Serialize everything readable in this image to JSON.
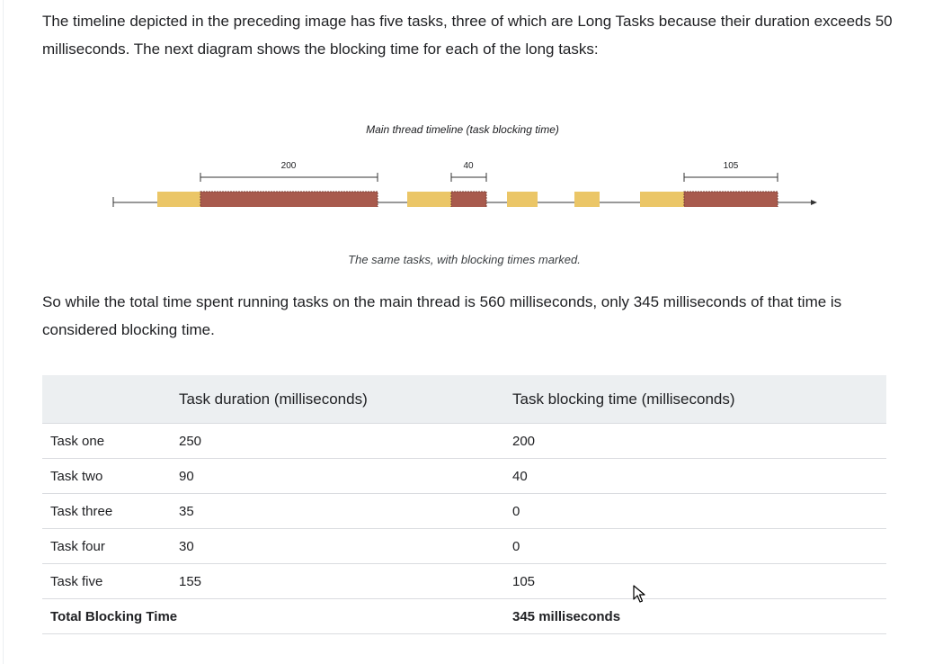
{
  "intro_paragraph": "The timeline depicted in the preceding image has five tasks, three of which are Long Tasks because their duration exceeds 50 milliseconds. The next diagram shows the blocking time for each of the long tasks:",
  "diagram": {
    "title": "Main thread timeline (task blocking time)",
    "caption": "The same tasks, with blocking times marked.",
    "blocking_labels": [
      "200",
      "40",
      "105"
    ],
    "colors": {
      "task": "#ebc667",
      "blocking": "#a85a4d",
      "line": "#333333"
    }
  },
  "summary_paragraph": "So while the total time spent running tasks on the main thread is 560 milliseconds, only 345 milliseconds of that time is considered blocking time.",
  "table": {
    "headers": [
      "",
      "Task duration (milliseconds)",
      "Task blocking time (milliseconds)"
    ],
    "rows": [
      {
        "task": "Task one",
        "duration": "250",
        "blocking": "200"
      },
      {
        "task": "Task two",
        "duration": "90",
        "blocking": "40"
      },
      {
        "task": "Task three",
        "duration": "35",
        "blocking": "0"
      },
      {
        "task": "Task four",
        "duration": "30",
        "blocking": "0"
      },
      {
        "task": "Task five",
        "duration": "155",
        "blocking": "105"
      }
    ],
    "total": {
      "label": "Total Blocking Time",
      "value": "345 milliseconds"
    }
  }
}
